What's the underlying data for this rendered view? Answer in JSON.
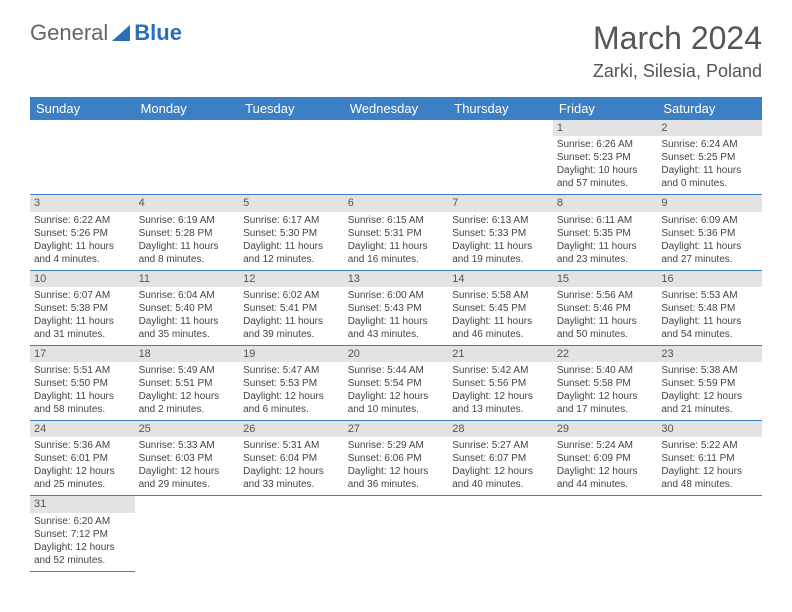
{
  "brand": {
    "part1": "General",
    "part2": "Blue"
  },
  "title": "March 2024",
  "location": "Zarki, Silesia, Poland",
  "colors": {
    "header_bg": "#3b7fc4",
    "header_fg": "#ffffff",
    "daynum_bg": "#e3e3e3",
    "text": "#444444",
    "rule": "#3b7fc4"
  },
  "weekdays": [
    "Sunday",
    "Monday",
    "Tuesday",
    "Wednesday",
    "Thursday",
    "Friday",
    "Saturday"
  ],
  "weeks": [
    [
      null,
      null,
      null,
      null,
      null,
      {
        "n": "1",
        "sr": "Sunrise: 6:26 AM",
        "ss": "Sunset: 5:23 PM",
        "dl": "Daylight: 10 hours and 57 minutes."
      },
      {
        "n": "2",
        "sr": "Sunrise: 6:24 AM",
        "ss": "Sunset: 5:25 PM",
        "dl": "Daylight: 11 hours and 0 minutes."
      }
    ],
    [
      {
        "n": "3",
        "sr": "Sunrise: 6:22 AM",
        "ss": "Sunset: 5:26 PM",
        "dl": "Daylight: 11 hours and 4 minutes."
      },
      {
        "n": "4",
        "sr": "Sunrise: 6:19 AM",
        "ss": "Sunset: 5:28 PM",
        "dl": "Daylight: 11 hours and 8 minutes."
      },
      {
        "n": "5",
        "sr": "Sunrise: 6:17 AM",
        "ss": "Sunset: 5:30 PM",
        "dl": "Daylight: 11 hours and 12 minutes."
      },
      {
        "n": "6",
        "sr": "Sunrise: 6:15 AM",
        "ss": "Sunset: 5:31 PM",
        "dl": "Daylight: 11 hours and 16 minutes."
      },
      {
        "n": "7",
        "sr": "Sunrise: 6:13 AM",
        "ss": "Sunset: 5:33 PM",
        "dl": "Daylight: 11 hours and 19 minutes."
      },
      {
        "n": "8",
        "sr": "Sunrise: 6:11 AM",
        "ss": "Sunset: 5:35 PM",
        "dl": "Daylight: 11 hours and 23 minutes."
      },
      {
        "n": "9",
        "sr": "Sunrise: 6:09 AM",
        "ss": "Sunset: 5:36 PM",
        "dl": "Daylight: 11 hours and 27 minutes."
      }
    ],
    [
      {
        "n": "10",
        "sr": "Sunrise: 6:07 AM",
        "ss": "Sunset: 5:38 PM",
        "dl": "Daylight: 11 hours and 31 minutes."
      },
      {
        "n": "11",
        "sr": "Sunrise: 6:04 AM",
        "ss": "Sunset: 5:40 PM",
        "dl": "Daylight: 11 hours and 35 minutes."
      },
      {
        "n": "12",
        "sr": "Sunrise: 6:02 AM",
        "ss": "Sunset: 5:41 PM",
        "dl": "Daylight: 11 hours and 39 minutes."
      },
      {
        "n": "13",
        "sr": "Sunrise: 6:00 AM",
        "ss": "Sunset: 5:43 PM",
        "dl": "Daylight: 11 hours and 43 minutes."
      },
      {
        "n": "14",
        "sr": "Sunrise: 5:58 AM",
        "ss": "Sunset: 5:45 PM",
        "dl": "Daylight: 11 hours and 46 minutes."
      },
      {
        "n": "15",
        "sr": "Sunrise: 5:56 AM",
        "ss": "Sunset: 5:46 PM",
        "dl": "Daylight: 11 hours and 50 minutes."
      },
      {
        "n": "16",
        "sr": "Sunrise: 5:53 AM",
        "ss": "Sunset: 5:48 PM",
        "dl": "Daylight: 11 hours and 54 minutes."
      }
    ],
    [
      {
        "n": "17",
        "sr": "Sunrise: 5:51 AM",
        "ss": "Sunset: 5:50 PM",
        "dl": "Daylight: 11 hours and 58 minutes."
      },
      {
        "n": "18",
        "sr": "Sunrise: 5:49 AM",
        "ss": "Sunset: 5:51 PM",
        "dl": "Daylight: 12 hours and 2 minutes."
      },
      {
        "n": "19",
        "sr": "Sunrise: 5:47 AM",
        "ss": "Sunset: 5:53 PM",
        "dl": "Daylight: 12 hours and 6 minutes."
      },
      {
        "n": "20",
        "sr": "Sunrise: 5:44 AM",
        "ss": "Sunset: 5:54 PM",
        "dl": "Daylight: 12 hours and 10 minutes."
      },
      {
        "n": "21",
        "sr": "Sunrise: 5:42 AM",
        "ss": "Sunset: 5:56 PM",
        "dl": "Daylight: 12 hours and 13 minutes."
      },
      {
        "n": "22",
        "sr": "Sunrise: 5:40 AM",
        "ss": "Sunset: 5:58 PM",
        "dl": "Daylight: 12 hours and 17 minutes."
      },
      {
        "n": "23",
        "sr": "Sunrise: 5:38 AM",
        "ss": "Sunset: 5:59 PM",
        "dl": "Daylight: 12 hours and 21 minutes."
      }
    ],
    [
      {
        "n": "24",
        "sr": "Sunrise: 5:36 AM",
        "ss": "Sunset: 6:01 PM",
        "dl": "Daylight: 12 hours and 25 minutes."
      },
      {
        "n": "25",
        "sr": "Sunrise: 5:33 AM",
        "ss": "Sunset: 6:03 PM",
        "dl": "Daylight: 12 hours and 29 minutes."
      },
      {
        "n": "26",
        "sr": "Sunrise: 5:31 AM",
        "ss": "Sunset: 6:04 PM",
        "dl": "Daylight: 12 hours and 33 minutes."
      },
      {
        "n": "27",
        "sr": "Sunrise: 5:29 AM",
        "ss": "Sunset: 6:06 PM",
        "dl": "Daylight: 12 hours and 36 minutes."
      },
      {
        "n": "28",
        "sr": "Sunrise: 5:27 AM",
        "ss": "Sunset: 6:07 PM",
        "dl": "Daylight: 12 hours and 40 minutes."
      },
      {
        "n": "29",
        "sr": "Sunrise: 5:24 AM",
        "ss": "Sunset: 6:09 PM",
        "dl": "Daylight: 12 hours and 44 minutes."
      },
      {
        "n": "30",
        "sr": "Sunrise: 5:22 AM",
        "ss": "Sunset: 6:11 PM",
        "dl": "Daylight: 12 hours and 48 minutes."
      }
    ],
    [
      {
        "n": "31",
        "sr": "Sunrise: 6:20 AM",
        "ss": "Sunset: 7:12 PM",
        "dl": "Daylight: 12 hours and 52 minutes."
      },
      null,
      null,
      null,
      null,
      null,
      null
    ]
  ]
}
